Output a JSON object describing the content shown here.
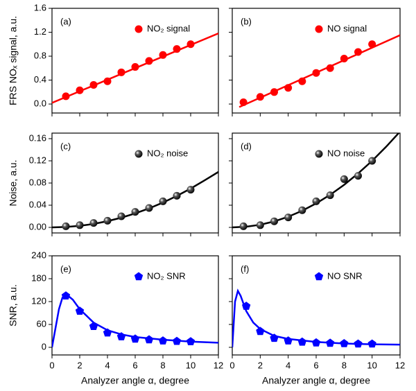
{
  "chart_data": [
    {
      "type": "scatter",
      "panel_label": "(a)",
      "ylabel": "FRS NOₓ signal, a.u.",
      "xtick_labels": false,
      "ytick_labels": true,
      "xlim": [
        0,
        12
      ],
      "xticks": [
        0,
        2,
        4,
        6,
        8,
        10,
        12
      ],
      "ylim": [
        -0.15,
        1.6
      ],
      "yticks": [
        {
          "value": 0,
          "label": "0.0"
        },
        0.4,
        0.8,
        1.2,
        1.6
      ],
      "legend": "top-right",
      "series": [
        {
          "name": "NO₂ signal",
          "mode": "markers",
          "marker": "circle",
          "color": "#ff0000",
          "x": [
            1,
            2,
            3,
            4,
            5,
            6,
            7,
            8,
            9,
            10
          ],
          "values": [
            0.13,
            0.23,
            0.32,
            0.38,
            0.53,
            0.62,
            0.72,
            0.82,
            0.92,
            1.0
          ]
        },
        {
          "mode": "line",
          "color": "#ff0000",
          "x": [
            0,
            12
          ],
          "values": [
            0.02,
            1.18
          ]
        }
      ]
    },
    {
      "type": "scatter",
      "panel_label": "(b)",
      "xtick_labels": false,
      "ytick_labels": false,
      "xlim": [
        0,
        12
      ],
      "xticks": [
        0,
        2,
        4,
        6,
        8,
        10,
        12
      ],
      "ylim": [
        -0.15,
        1.6
      ],
      "yticks": [
        0,
        0.4,
        0.8,
        1.2,
        1.6
      ],
      "legend": "top-right",
      "series": [
        {
          "name": "NO signal",
          "mode": "markers",
          "marker": "circle",
          "color": "#ff0000",
          "x": [
            0.8,
            2,
            3,
            4,
            5,
            6,
            7,
            8,
            9,
            10
          ],
          "values": [
            0.03,
            0.12,
            0.2,
            0.27,
            0.38,
            0.52,
            0.6,
            0.76,
            0.87,
            1.0
          ]
        },
        {
          "mode": "line",
          "color": "#ff0000",
          "x": [
            0.5,
            12
          ],
          "values": [
            -0.05,
            1.15
          ]
        }
      ]
    },
    {
      "type": "scatter",
      "panel_label": "(c)",
      "ylabel": "Noise, a.u.",
      "xtick_labels": false,
      "ytick_labels": true,
      "xlim": [
        0,
        12
      ],
      "xticks": [
        0,
        2,
        4,
        6,
        8,
        10,
        12
      ],
      "ylim": [
        -0.01,
        0.17
      ],
      "yticks": [
        {
          "value": 0,
          "label": "0.00"
        },
        0.04,
        0.08,
        0.12,
        0.16
      ],
      "legend": "top-right",
      "series": [
        {
          "name": "NO₂ noise",
          "mode": "markers",
          "marker": "sphere",
          "color": "#000000",
          "x": [
            1,
            2,
            3,
            4,
            5,
            6,
            7,
            8,
            9,
            10
          ],
          "values": [
            0.002,
            0.004,
            0.008,
            0.012,
            0.02,
            0.028,
            0.035,
            0.047,
            0.057,
            0.068
          ]
        },
        {
          "mode": "line",
          "color": "#000000",
          "x": [
            0,
            1,
            2,
            3,
            4,
            5,
            6,
            7,
            8,
            9,
            10,
            11,
            12
          ],
          "values": [
            0,
            0.0007,
            0.0028,
            0.0063,
            0.0112,
            0.0175,
            0.0252,
            0.0343,
            0.0448,
            0.0567,
            0.07,
            0.0847,
            0.1
          ]
        }
      ]
    },
    {
      "type": "scatter",
      "panel_label": "(d)",
      "xtick_labels": false,
      "ytick_labels": false,
      "xlim": [
        0,
        12
      ],
      "xticks": [
        0,
        2,
        4,
        6,
        8,
        10,
        12
      ],
      "ylim": [
        -0.01,
        0.17
      ],
      "yticks": [
        0,
        0.04,
        0.08,
        0.12,
        0.16
      ],
      "legend": "top-right",
      "series": [
        {
          "name": "NO noise",
          "mode": "markers",
          "marker": "sphere",
          "color": "#000000",
          "x": [
            0.8,
            2,
            3,
            4,
            5,
            6,
            7,
            8,
            9,
            10
          ],
          "values": [
            0.002,
            0.004,
            0.011,
            0.018,
            0.031,
            0.047,
            0.058,
            0.087,
            0.093,
            0.12
          ]
        },
        {
          "mode": "line",
          "color": "#000000",
          "x": [
            0,
            1,
            2,
            3,
            4,
            5,
            6,
            7,
            8,
            9,
            10,
            11,
            12
          ],
          "values": [
            0,
            0.0012,
            0.0048,
            0.0108,
            0.0192,
            0.03,
            0.0432,
            0.0588,
            0.0768,
            0.0972,
            0.12,
            0.1452,
            0.1728
          ]
        }
      ]
    },
    {
      "type": "scatter",
      "panel_label": "(e)",
      "ylabel": "SNR, a.u.",
      "xlabel": "Analyzer angle α, degree",
      "xtick_labels": true,
      "ytick_labels": true,
      "xlim": [
        0,
        12
      ],
      "xticks": [
        0,
        2,
        4,
        6,
        8,
        10,
        12
      ],
      "ylim": [
        -20,
        240
      ],
      "yticks": [
        0,
        60,
        120,
        180,
        240
      ],
      "legend": "top-right",
      "series": [
        {
          "name": "NO₂ SNR",
          "mode": "markers",
          "marker": "pentagon",
          "color": "#0000ff",
          "x": [
            1,
            2,
            3,
            4,
            5,
            6,
            7,
            8,
            9,
            10
          ],
          "values": [
            135,
            95,
            55,
            38,
            28,
            22,
            20,
            17,
            16,
            15
          ]
        },
        {
          "mode": "line",
          "color": "#0000ff",
          "x": [
            0,
            0.25,
            0.5,
            0.75,
            1,
            1.5,
            2,
            3,
            4,
            5,
            6,
            8,
            10,
            12
          ],
          "values": [
            0,
            50,
            100,
            130,
            140,
            125,
            100,
            65,
            45,
            34,
            27,
            20,
            15,
            12
          ]
        }
      ]
    },
    {
      "type": "scatter",
      "panel_label": "(f)",
      "xlabel": "Analyzer angle α, degree",
      "xtick_labels": true,
      "ytick_labels": false,
      "xlim": [
        0,
        12
      ],
      "xticks": [
        0,
        2,
        4,
        6,
        8,
        10,
        12
      ],
      "ylim": [
        -20,
        240
      ],
      "yticks": [
        0,
        60,
        120,
        180,
        240
      ],
      "legend": "top-right",
      "series": [
        {
          "name": "NO SNR",
          "mode": "markers",
          "marker": "pentagon",
          "color": "#0000ff",
          "x": [
            1,
            2,
            3,
            4,
            5,
            6,
            7,
            8,
            9,
            10
          ],
          "values": [
            108,
            42,
            24,
            17,
            14,
            12,
            11,
            10,
            9,
            9
          ]
        },
        {
          "mode": "line",
          "color": "#0000ff",
          "x": [
            0,
            0.1,
            0.2,
            0.4,
            0.6,
            0.8,
            1,
            1.5,
            2,
            3,
            4,
            6,
            8,
            10,
            12
          ],
          "values": [
            0,
            60,
            120,
            148,
            135,
            115,
            95,
            65,
            48,
            30,
            22,
            14,
            10,
            8,
            7
          ]
        }
      ]
    }
  ]
}
